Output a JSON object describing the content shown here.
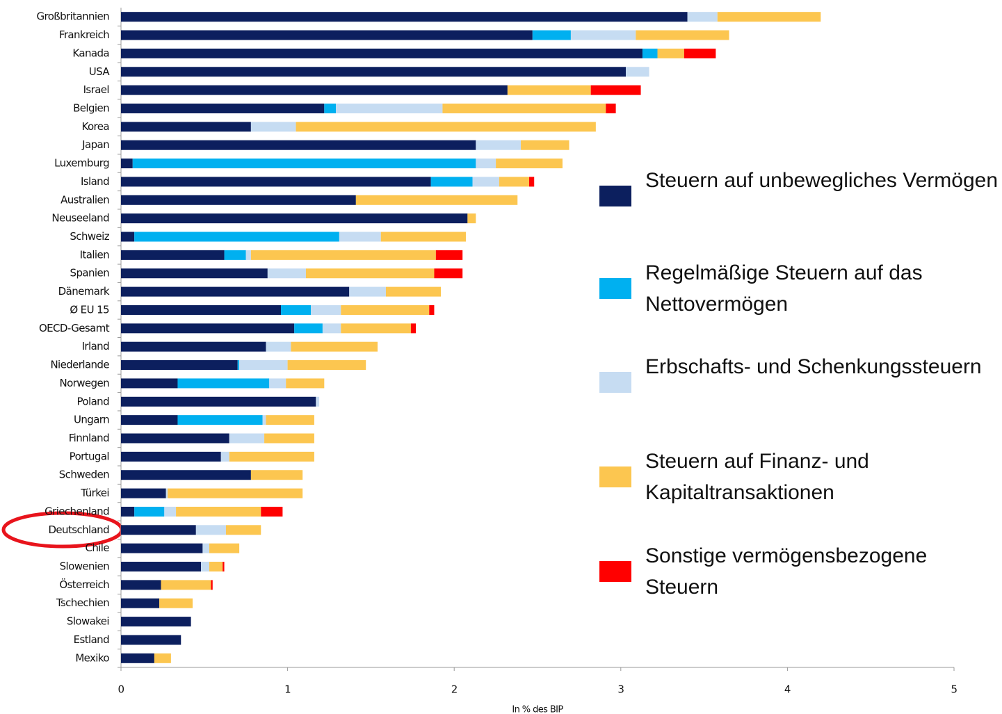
{
  "chart_data": {
    "type": "bar",
    "orientation": "horizontal",
    "stacked": true,
    "xlabel": "In % des BIP",
    "categories": [
      "Großbritannien",
      "Frankreich",
      "Kanada",
      "USA",
      "Israel",
      "Belgien",
      "Korea",
      "Japan",
      "Luxemburg",
      "Island",
      "Australien",
      "Neuseeland",
      "Schweiz",
      "Italien",
      "Spanien",
      "Dänemark",
      "Ø EU 15",
      "OECD-Gesamt",
      "Irland",
      "Niederlande",
      "Norwegen",
      "Poland",
      "Ungarn",
      "Finnland",
      "Portugal",
      "Schweden",
      "Türkei",
      "Griechenland",
      "Deutschland",
      "Chile",
      "Slowenien",
      "Österreich",
      "Tschechien",
      "Slowakei",
      "Estland",
      "Mexiko"
    ],
    "series": [
      {
        "name": "Steuern auf unbewegliches Vermögen",
        "color": "#0c1f5e",
        "values": [
          3.4,
          2.47,
          3.13,
          3.03,
          2.32,
          1.22,
          0.78,
          2.13,
          0.07,
          1.86,
          1.41,
          2.08,
          0.08,
          0.62,
          0.88,
          1.37,
          0.96,
          1.04,
          0.87,
          0.7,
          0.34,
          1.17,
          0.34,
          0.65,
          0.6,
          0.78,
          0.27,
          0.08,
          0.45,
          0.49,
          0.48,
          0.24,
          0.23,
          0.42,
          0.36,
          0.2
        ]
      },
      {
        "name": "Regelmäßige Steuern auf das Nettovermögen",
        "color": "#00b0f0",
        "values": [
          0,
          0.23,
          0.09,
          0,
          0,
          0.07,
          0,
          0,
          2.06,
          0.25,
          0,
          0,
          1.23,
          0.13,
          0,
          0,
          0.18,
          0.17,
          0,
          0.01,
          0.55,
          0,
          0.51,
          0,
          0,
          0,
          0,
          0.18,
          0,
          0,
          0,
          0,
          0,
          0,
          0,
          0
        ]
      },
      {
        "name": "Erbschafts- und Schenkungssteuern",
        "color": "#c6dcf2",
        "values": [
          0.18,
          0.39,
          0,
          0.14,
          0,
          0.64,
          0.27,
          0.27,
          0.12,
          0.16,
          0,
          0,
          0.25,
          0.03,
          0.23,
          0.22,
          0.18,
          0.11,
          0.15,
          0.29,
          0.1,
          0.02,
          0.02,
          0.21,
          0.05,
          0,
          0.01,
          0.07,
          0.18,
          0.04,
          0.05,
          0,
          0,
          0,
          0,
          0
        ]
      },
      {
        "name": "Steuern auf Finanz- und Kapitaltransaktionen",
        "color": "#fcc650",
        "values": [
          0.62,
          0.56,
          0.16,
          0,
          0.5,
          0.98,
          1.8,
          0.29,
          0.4,
          0.18,
          0.97,
          0.05,
          0.51,
          1.11,
          0.77,
          0.33,
          0.53,
          0.42,
          0.52,
          0.47,
          0.23,
          0,
          0.29,
          0.3,
          0.51,
          0.31,
          0.81,
          0.51,
          0.21,
          0.18,
          0.08,
          0.3,
          0.2,
          0,
          0,
          0.1
        ]
      },
      {
        "name": "Sonstige vermögensbezogene Steuern",
        "color": "#ff0000",
        "values": [
          0,
          0,
          0.19,
          0,
          0.3,
          0.06,
          0,
          0,
          0,
          0.03,
          0,
          0,
          0,
          0.16,
          0.17,
          0,
          0.03,
          0.03,
          0,
          0,
          0,
          0,
          0,
          0,
          0,
          0,
          0,
          0.13,
          0,
          0,
          0.01,
          0.01,
          0,
          0,
          0,
          0
        ]
      }
    ],
    "xlim": [
      0,
      5
    ],
    "xticks": [
      0,
      1,
      2,
      3,
      4,
      5
    ]
  }
}
